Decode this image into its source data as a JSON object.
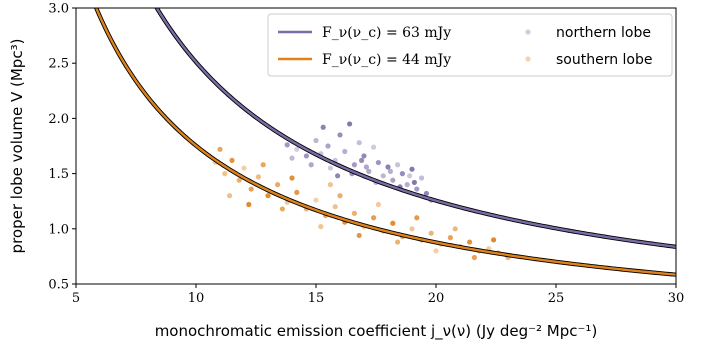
{
  "chart_data": {
    "type": "scatter",
    "xlabel": "monochromatic emission coefficient j_ν(ν)  (Jy deg⁻² Mpc⁻¹)",
    "ylabel": "proper lobe volume V  (Mpc³)",
    "xlim": [
      5,
      30
    ],
    "ylim": [
      0.5,
      3.0
    ],
    "xticks": [
      5,
      10,
      15,
      20,
      25,
      30
    ],
    "yticks": [
      "0.5",
      "1.0",
      "1.5",
      "2.0",
      "2.5",
      "3.0"
    ],
    "legend_position": "top-right",
    "curves": [
      {
        "name": "F_ν(ν_c) = 63 mJy",
        "color": "#7b6ca8",
        "flux_mJy": 63
      },
      {
        "name": "F_ν(ν_c) = 44 mJy",
        "color": "#e0821c",
        "flux_mJy": 44
      }
    ],
    "scatter_series": [
      {
        "name": "northern lobe",
        "color": "#7b6ca8",
        "points": [
          [
            14.2,
            1.72
          ],
          [
            14.6,
            1.66
          ],
          [
            15.0,
            1.8
          ],
          [
            15.3,
            1.92
          ],
          [
            15.5,
            1.75
          ],
          [
            15.8,
            1.62
          ],
          [
            16.0,
            1.85
          ],
          [
            16.2,
            1.7
          ],
          [
            16.4,
            1.95
          ],
          [
            16.6,
            1.58
          ],
          [
            16.8,
            1.78
          ],
          [
            17.0,
            1.66
          ],
          [
            17.2,
            1.52
          ],
          [
            17.4,
            1.74
          ],
          [
            17.6,
            1.6
          ],
          [
            17.8,
            1.48
          ],
          [
            18.0,
            1.56
          ],
          [
            18.2,
            1.44
          ],
          [
            18.4,
            1.58
          ],
          [
            18.6,
            1.5
          ],
          [
            18.8,
            1.4
          ],
          [
            19.0,
            1.54
          ],
          [
            19.2,
            1.36
          ],
          [
            19.4,
            1.46
          ],
          [
            19.6,
            1.32
          ],
          [
            14.8,
            1.58
          ],
          [
            15.6,
            1.55
          ],
          [
            16.5,
            1.5
          ],
          [
            17.5,
            1.42
          ],
          [
            18.5,
            1.38
          ],
          [
            19.8,
            1.26
          ],
          [
            15.2,
            1.68
          ],
          [
            16.9,
            1.62
          ],
          [
            18.1,
            1.52
          ],
          [
            19.1,
            1.42
          ],
          [
            13.8,
            1.76
          ],
          [
            14.0,
            1.64
          ],
          [
            15.9,
            1.48
          ],
          [
            17.1,
            1.56
          ],
          [
            18.9,
            1.48
          ]
        ]
      },
      {
        "name": "southern lobe",
        "color": "#e0821c",
        "points": [
          [
            10.8,
            1.6
          ],
          [
            11.0,
            1.72
          ],
          [
            11.2,
            1.5
          ],
          [
            11.5,
            1.62
          ],
          [
            11.8,
            1.44
          ],
          [
            12.0,
            1.55
          ],
          [
            12.3,
            1.36
          ],
          [
            12.6,
            1.47
          ],
          [
            13.0,
            1.3
          ],
          [
            13.4,
            1.4
          ],
          [
            13.8,
            1.24
          ],
          [
            14.2,
            1.33
          ],
          [
            14.6,
            1.18
          ],
          [
            15.0,
            1.26
          ],
          [
            15.4,
            1.12
          ],
          [
            15.8,
            1.2
          ],
          [
            16.2,
            1.06
          ],
          [
            16.6,
            1.14
          ],
          [
            17.0,
            1.02
          ],
          [
            17.4,
            1.1
          ],
          [
            17.8,
            0.98
          ],
          [
            18.2,
            1.05
          ],
          [
            18.6,
            0.93
          ],
          [
            19.0,
            1.0
          ],
          [
            19.4,
            0.9
          ],
          [
            19.8,
            0.96
          ],
          [
            20.2,
            0.86
          ],
          [
            20.6,
            0.92
          ],
          [
            21.0,
            0.84
          ],
          [
            21.4,
            0.88
          ],
          [
            21.8,
            0.8
          ],
          [
            22.2,
            0.82
          ],
          [
            22.6,
            0.78
          ],
          [
            23.0,
            0.74
          ],
          [
            12.2,
            1.22
          ],
          [
            13.6,
            1.18
          ],
          [
            15.2,
            1.02
          ],
          [
            16.8,
            0.94
          ],
          [
            18.4,
            0.88
          ],
          [
            20.0,
            0.8
          ],
          [
            21.6,
            0.74
          ],
          [
            11.4,
            1.3
          ],
          [
            14.0,
            1.46
          ],
          [
            16.0,
            1.3
          ],
          [
            17.6,
            1.22
          ],
          [
            19.2,
            1.1
          ],
          [
            20.8,
            1.0
          ],
          [
            22.4,
            0.9
          ],
          [
            12.8,
            1.58
          ],
          [
            15.6,
            1.4
          ]
        ]
      }
    ]
  }
}
